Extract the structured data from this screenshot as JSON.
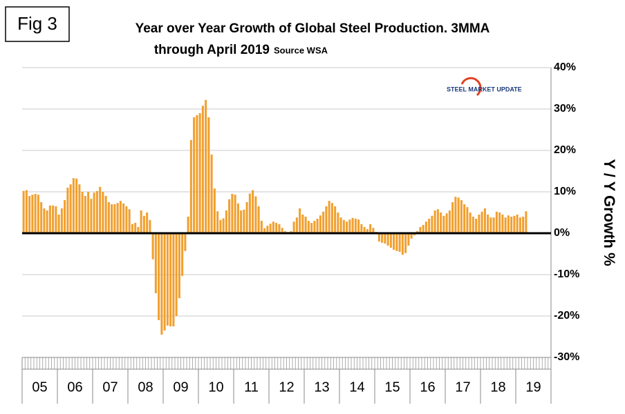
{
  "chart_data": {
    "type": "bar",
    "figure_label": "Fig 3",
    "title": "Year over Year Growth of Global Steel Production. 3MMA",
    "title_line2": "through April 2019",
    "source": "Source WSA",
    "logo": "STEEL MARKET UPDATE",
    "ylabel": "Y / Y Growth %",
    "color": "#f0a030",
    "ylim": [
      -30,
      40
    ],
    "yticks": [
      {
        "value": -30,
        "label": "-30%"
      },
      {
        "value": -20,
        "label": "-20%"
      },
      {
        "value": -10,
        "label": "-10%"
      },
      {
        "value": 0,
        "label": "0%"
      },
      {
        "value": 10,
        "label": "10%"
      },
      {
        "value": 20,
        "label": "20%"
      },
      {
        "value": 30,
        "label": "30%"
      },
      {
        "value": 40,
        "label": "40%"
      }
    ],
    "grid": true,
    "categories": [
      "05",
      null,
      null,
      null,
      null,
      null,
      null,
      null,
      null,
      null,
      null,
      null,
      "06",
      null,
      null,
      null,
      null,
      null,
      null,
      null,
      null,
      null,
      null,
      null,
      "07",
      null,
      null,
      null,
      null,
      null,
      null,
      null,
      null,
      null,
      null,
      null,
      "08",
      null,
      null,
      null,
      null,
      null,
      null,
      null,
      null,
      null,
      null,
      null,
      "09",
      null,
      null,
      null,
      null,
      null,
      null,
      null,
      null,
      null,
      null,
      null,
      "10",
      null,
      null,
      null,
      null,
      null,
      null,
      null,
      null,
      null,
      null,
      null,
      "11",
      null,
      null,
      null,
      null,
      null,
      null,
      null,
      null,
      null,
      null,
      null,
      "12",
      null,
      null,
      null,
      null,
      null,
      null,
      null,
      null,
      null,
      null,
      null,
      "13",
      null,
      null,
      null,
      null,
      null,
      null,
      null,
      null,
      null,
      null,
      null,
      "14",
      null,
      null,
      null,
      null,
      null,
      null,
      null,
      null,
      null,
      null,
      null,
      "15",
      null,
      null,
      null,
      null,
      null,
      null,
      null,
      null,
      null,
      null,
      null,
      "16",
      null,
      null,
      null,
      null,
      null,
      null,
      null,
      null,
      null,
      null,
      null,
      "17",
      null,
      null,
      null,
      null,
      null,
      null,
      null,
      null,
      null,
      null,
      null,
      "18",
      null,
      null,
      null,
      null,
      null,
      null,
      null,
      null,
      null,
      null,
      null,
      "19",
      null,
      null,
      null
    ],
    "values": [
      10.2,
      10.4,
      9,
      9.3,
      9.5,
      9.3,
      7.5,
      6,
      5.5,
      6.7,
      6.7,
      6.5,
      4.5,
      6,
      8,
      11,
      11.8,
      13.3,
      13.2,
      11.8,
      10,
      9,
      10,
      8.3,
      9.8,
      10.2,
      11.2,
      10,
      9,
      7.5,
      7,
      7,
      7.3,
      7.8,
      7.2,
      6.5,
      5.8,
      2.2,
      2.5,
      1.5,
      5.5,
      4.2,
      5,
      3.2,
      -6.3,
      -14.5,
      -21,
      -24.5,
      -23.5,
      -22.3,
      -22.5,
      -22.5,
      -20,
      -15.7,
      -10.3,
      -4.3,
      4,
      22.5,
      28,
      28.5,
      29,
      30.8,
      32.2,
      28,
      19,
      10.8,
      5.3,
      3.2,
      3.6,
      5.5,
      8.2,
      9.5,
      9.3,
      7.2,
      5.5,
      5.7,
      7.5,
      9.6,
      10.4,
      8.9,
      6.5,
      3,
      1.2,
      1.8,
      2.3,
      2.8,
      2.5,
      2.2,
      1.3,
      0.5,
      0.3,
      0.5,
      2.8,
      3.8,
      6,
      4.5,
      4,
      3,
      2.5,
      3,
      3.5,
      4.3,
      5.2,
      6.5,
      7.8,
      7.3,
      6.5,
      5,
      3.8,
      3.2,
      2.8,
      3.3,
      3.7,
      3.5,
      3.3,
      2.2,
      1.5,
      1,
      2.2,
      1.3,
      0.3,
      -2,
      -2.3,
      -2.5,
      -3,
      -3.5,
      -4,
      -4.3,
      -4.5,
      -5.2,
      -4.8,
      -3,
      -1.3,
      -0.5,
      0.5,
      1.5,
      2,
      2.8,
      3.5,
      4.2,
      5.5,
      5.8,
      5,
      4.2,
      4.8,
      5.5,
      7.5,
      8.8,
      8.6,
      8,
      7,
      6.3,
      5,
      4,
      3.5,
      4.5,
      5.2,
      6,
      4.5,
      3.8,
      3.8,
      5.2,
      5,
      4.5,
      3.8,
      4.3,
      4,
      4.2,
      4.5,
      3.8,
      4,
      5.3
    ]
  }
}
